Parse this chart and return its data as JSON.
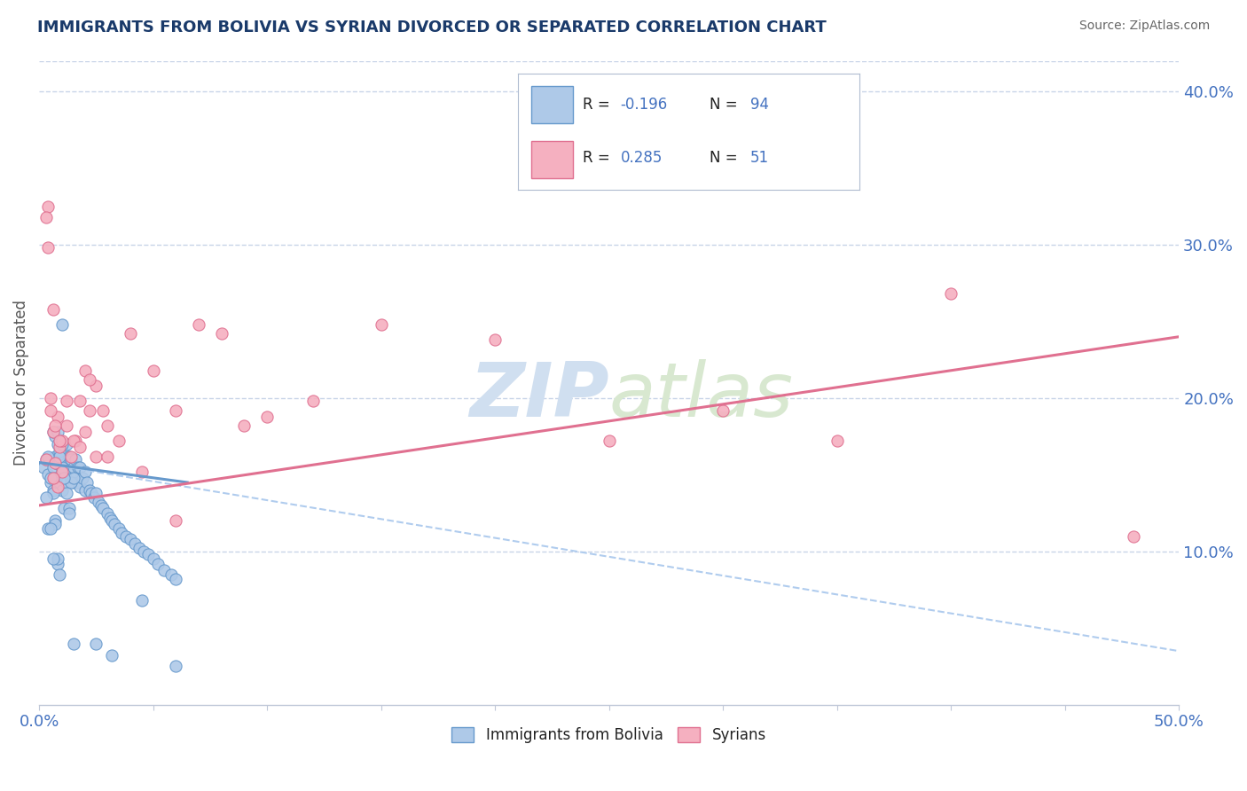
{
  "title": "IMMIGRANTS FROM BOLIVIA VS SYRIAN DIVORCED OR SEPARATED CORRELATION CHART",
  "source": "Source: ZipAtlas.com",
  "ylabel": "Divorced or Separated",
  "xlim": [
    0.0,
    0.5
  ],
  "ylim": [
    0.0,
    0.42
  ],
  "xticks": [
    0.0,
    0.05,
    0.1,
    0.15,
    0.2,
    0.25,
    0.3,
    0.35,
    0.4,
    0.45,
    0.5
  ],
  "yticks_right": [
    0.1,
    0.2,
    0.3,
    0.4
  ],
  "ytick_right_labels": [
    "10.0%",
    "20.0%",
    "30.0%",
    "40.0%"
  ],
  "bolivia_color": "#aec9e8",
  "bolivia_edge": "#6699cc",
  "syria_color": "#f5b0c0",
  "syria_edge": "#e07090",
  "bolivia_R": -0.196,
  "bolivia_N": 94,
  "syria_R": 0.285,
  "syria_N": 51,
  "bolivia_trend_color": "#6699cc",
  "bolivia_trend_dash_color": "#b0ccee",
  "syria_trend_color": "#e07090",
  "watermark_color": "#d0dff0",
  "background_color": "#ffffff",
  "grid_color": "#c8d4e8",
  "legend_label1": "Immigrants from Bolivia",
  "legend_label2": "Syrians",
  "bolivia_scatter_x": [
    0.002,
    0.003,
    0.004,
    0.005,
    0.005,
    0.006,
    0.006,
    0.007,
    0.007,
    0.008,
    0.008,
    0.009,
    0.009,
    0.01,
    0.01,
    0.01,
    0.011,
    0.011,
    0.012,
    0.012,
    0.013,
    0.013,
    0.014,
    0.014,
    0.015,
    0.015,
    0.016,
    0.016,
    0.017,
    0.017,
    0.018,
    0.018,
    0.019,
    0.02,
    0.02,
    0.021,
    0.022,
    0.023,
    0.024,
    0.025,
    0.026,
    0.027,
    0.028,
    0.03,
    0.031,
    0.032,
    0.033,
    0.035,
    0.036,
    0.038,
    0.04,
    0.042,
    0.044,
    0.046,
    0.048,
    0.05,
    0.052,
    0.055,
    0.058,
    0.06,
    0.007,
    0.008,
    0.009,
    0.01,
    0.011,
    0.012,
    0.013,
    0.014,
    0.015,
    0.008,
    0.009,
    0.01,
    0.011,
    0.012,
    0.013,
    0.006,
    0.007,
    0.008,
    0.009,
    0.01,
    0.004,
    0.005,
    0.006,
    0.007,
    0.008,
    0.003,
    0.004,
    0.005,
    0.006,
    0.032,
    0.045,
    0.06,
    0.025,
    0.015
  ],
  "bolivia_scatter_y": [
    0.155,
    0.16,
    0.15,
    0.145,
    0.16,
    0.14,
    0.155,
    0.148,
    0.162,
    0.142,
    0.157,
    0.145,
    0.158,
    0.14,
    0.152,
    0.165,
    0.148,
    0.16,
    0.145,
    0.158,
    0.15,
    0.162,
    0.148,
    0.16,
    0.145,
    0.155,
    0.148,
    0.16,
    0.145,
    0.155,
    0.142,
    0.155,
    0.148,
    0.14,
    0.152,
    0.145,
    0.14,
    0.138,
    0.135,
    0.138,
    0.132,
    0.13,
    0.128,
    0.125,
    0.122,
    0.12,
    0.118,
    0.115,
    0.112,
    0.11,
    0.108,
    0.105,
    0.102,
    0.1,
    0.098,
    0.095,
    0.092,
    0.088,
    0.085,
    0.082,
    0.175,
    0.17,
    0.165,
    0.248,
    0.128,
    0.17,
    0.128,
    0.145,
    0.148,
    0.092,
    0.085,
    0.155,
    0.148,
    0.138,
    0.125,
    0.178,
    0.12,
    0.178,
    0.162,
    0.17,
    0.162,
    0.148,
    0.138,
    0.118,
    0.095,
    0.135,
    0.115,
    0.115,
    0.095,
    0.032,
    0.068,
    0.025,
    0.04,
    0.04
  ],
  "syria_scatter_x": [
    0.003,
    0.005,
    0.006,
    0.007,
    0.008,
    0.009,
    0.01,
    0.012,
    0.014,
    0.016,
    0.018,
    0.02,
    0.022,
    0.025,
    0.028,
    0.03,
    0.035,
    0.04,
    0.045,
    0.05,
    0.06,
    0.07,
    0.08,
    0.09,
    0.1,
    0.12,
    0.15,
    0.2,
    0.25,
    0.3,
    0.35,
    0.4,
    0.48,
    0.004,
    0.006,
    0.008,
    0.01,
    0.015,
    0.02,
    0.025,
    0.03,
    0.005,
    0.007,
    0.009,
    0.012,
    0.018,
    0.022,
    0.06,
    0.003,
    0.004,
    0.006
  ],
  "syria_scatter_y": [
    0.16,
    0.2,
    0.178,
    0.158,
    0.188,
    0.168,
    0.152,
    0.182,
    0.162,
    0.172,
    0.198,
    0.178,
    0.192,
    0.208,
    0.192,
    0.182,
    0.172,
    0.242,
    0.152,
    0.218,
    0.192,
    0.248,
    0.242,
    0.182,
    0.188,
    0.198,
    0.248,
    0.238,
    0.172,
    0.192,
    0.172,
    0.268,
    0.11,
    0.325,
    0.258,
    0.142,
    0.172,
    0.172,
    0.218,
    0.162,
    0.162,
    0.192,
    0.182,
    0.172,
    0.198,
    0.168,
    0.212,
    0.12,
    0.318,
    0.298,
    0.148
  ],
  "bolivia_trend_x0": 0.0,
  "bolivia_trend_y0": 0.158,
  "bolivia_trend_x1": 0.065,
  "bolivia_trend_y1": 0.145,
  "bolivia_trend_dash_x0": 0.0,
  "bolivia_trend_dash_y0": 0.158,
  "bolivia_trend_dash_x1": 0.5,
  "bolivia_trend_dash_y1": 0.035,
  "syria_trend_x0": 0.0,
  "syria_trend_y0": 0.13,
  "syria_trend_x1": 0.5,
  "syria_trend_y1": 0.24
}
